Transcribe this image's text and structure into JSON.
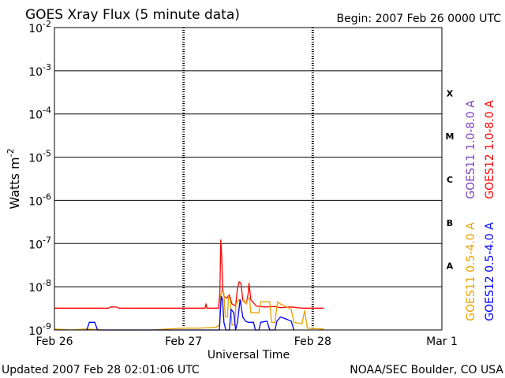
{
  "header": {
    "title": "GOES Xray Flux (5 minute data)",
    "begin": "Begin:  2007 Feb 26 0000 UTC"
  },
  "footer": {
    "updated": "Updated 2007 Feb 28 02:01:06 UTC",
    "source": "NOAA/SEC Boulder, CO USA"
  },
  "chart_data": {
    "type": "line",
    "title": "GOES Xray Flux (5 minute data)",
    "xlabel": "Universal Time",
    "ylabel": "Watts m",
    "ylabel_sup": "-2",
    "y_scale": "log",
    "ylim": [
      1e-09,
      0.01
    ],
    "xlim": [
      "2007-02-26 00:00",
      "2007-03-01 00:00"
    ],
    "grid": true,
    "x_ticks": [
      {
        "x": "2007-02-26 00:00",
        "label": "Feb 26"
      },
      {
        "x": "2007-02-27 00:00",
        "label": "Feb 27"
      },
      {
        "x": "2007-02-28 00:00",
        "label": "Feb 28"
      },
      {
        "x": "2007-03-01 00:00",
        "label": "Mar 1"
      }
    ],
    "y_ticks": [
      {
        "exp": -2
      },
      {
        "exp": -3
      },
      {
        "exp": -4
      },
      {
        "exp": -5
      },
      {
        "exp": -6
      },
      {
        "exp": -7
      },
      {
        "exp": -8
      },
      {
        "exp": -9
      }
    ],
    "y_tick_base": "10",
    "flare_classes": [
      {
        "label": "X",
        "band_low": 0.0001
      },
      {
        "label": "M",
        "band_low": 1e-05
      },
      {
        "label": "C",
        "band_low": 1e-06
      },
      {
        "label": "B",
        "band_low": 1e-07
      },
      {
        "label": "A",
        "band_low": 1e-08
      }
    ],
    "legend_placement": "right",
    "legend": [
      {
        "label": "GOES11 1.0-8.0 A",
        "color": "#7f3fbf"
      },
      {
        "label": "GOES12 1.0-8.0 A",
        "color": "#ff0000"
      },
      {
        "label": "GOES11 0.5-4.0 A",
        "color": "#e8a000"
      },
      {
        "label": "GOES12 0.5-4.0 A",
        "color": "#0000ff"
      }
    ],
    "series": [
      {
        "name": "GOES12 1.0-8.0 A",
        "color": "#ff0000",
        "points": [
          [
            "2007-02-26 00:00",
            3.2e-09
          ],
          [
            "2007-02-26 10:00",
            3.2e-09
          ],
          [
            "2007-02-26 10:30",
            3.4e-09
          ],
          [
            "2007-02-26 11:30",
            3.4e-09
          ],
          [
            "2007-02-26 12:00",
            3.2e-09
          ],
          [
            "2007-02-27 00:00",
            3.2e-09
          ],
          [
            "2007-02-27 04:00",
            3.2e-09
          ],
          [
            "2007-02-27 04:10",
            4e-09
          ],
          [
            "2007-02-27 04:20",
            3.2e-09
          ],
          [
            "2007-02-27 06:30",
            3.2e-09
          ],
          [
            "2007-02-27 06:45",
            8e-09
          ],
          [
            "2007-02-27 06:55",
            1.2e-07
          ],
          [
            "2007-02-27 07:05",
            5e-08
          ],
          [
            "2007-02-27 07:15",
            9e-09
          ],
          [
            "2007-02-27 07:30",
            6e-09
          ],
          [
            "2007-02-27 08:00",
            5.5e-09
          ],
          [
            "2007-02-27 08:30",
            6.5e-09
          ],
          [
            "2007-02-27 09:00",
            4e-09
          ],
          [
            "2007-02-27 09:40",
            3.6e-09
          ],
          [
            "2007-02-27 10:00",
            9e-09
          ],
          [
            "2007-02-27 10:20",
            1.3e-08
          ],
          [
            "2007-02-27 10:40",
            1.2e-08
          ],
          [
            "2007-02-27 11:00",
            5e-09
          ],
          [
            "2007-02-27 11:40",
            4e-09
          ],
          [
            "2007-02-27 12:00",
            7e-09
          ],
          [
            "2007-02-27 12:10",
            1.2e-08
          ],
          [
            "2007-02-27 12:30",
            5e-09
          ],
          [
            "2007-02-27 13:30",
            3.6e-09
          ],
          [
            "2007-02-27 15:00",
            3.4e-09
          ],
          [
            "2007-02-27 17:00",
            3.5e-09
          ],
          [
            "2007-02-27 18:00",
            3.3e-09
          ],
          [
            "2007-02-27 20:00",
            3.4e-09
          ],
          [
            "2007-02-27 22:00",
            3.2e-09
          ],
          [
            "2007-02-28 00:00",
            3.2e-09
          ],
          [
            "2007-02-28 02:00",
            3.2e-09
          ]
        ]
      },
      {
        "name": "GOES11 0.5-4.0 A",
        "color": "#e8a000",
        "points": [
          [
            "2007-02-26 00:00",
            1.05e-09
          ],
          [
            "2007-02-26 03:00",
            1e-09
          ],
          [
            "2007-02-26 06:00",
            1.05e-09
          ],
          [
            "2007-02-26 09:00",
            1e-09
          ],
          [
            "2007-02-26 12:00",
            1e-09
          ],
          [
            "2007-02-26 15:00",
            1e-09
          ],
          [
            "2007-02-26 18:00",
            1e-09
          ],
          [
            "2007-02-26 21:00",
            1.05e-09
          ],
          [
            "2007-02-27 00:00",
            1.1e-09
          ],
          [
            "2007-02-27 03:00",
            1.1e-09
          ],
          [
            "2007-02-27 06:00",
            1.15e-09
          ],
          [
            "2007-02-27 06:40",
            1.3e-09
          ],
          [
            "2007-02-27 06:50",
            6e-09
          ],
          [
            "2007-02-27 07:05",
            8e-09
          ],
          [
            "2007-02-27 07:30",
            7e-09
          ],
          [
            "2007-02-27 07:45",
            2e-09
          ],
          [
            "2007-02-27 08:10",
            2e-09
          ],
          [
            "2007-02-27 08:20",
            6e-09
          ],
          [
            "2007-02-27 08:40",
            5e-09
          ],
          [
            "2007-02-27 09:00",
            1.3e-09
          ],
          [
            "2007-02-27 09:30",
            1.3e-09
          ],
          [
            "2007-02-27 09:45",
            4e-09
          ],
          [
            "2007-02-27 10:15",
            5e-09
          ],
          [
            "2007-02-27 10:45",
            4.5e-09
          ],
          [
            "2007-02-27 11:10",
            5e-09
          ],
          [
            "2007-02-27 11:40",
            4e-09
          ],
          [
            "2007-02-27 12:00",
            5.5e-09
          ],
          [
            "2007-02-27 12:15",
            5.5e-09
          ],
          [
            "2007-02-27 12:30",
            2.5e-09
          ],
          [
            "2007-02-27 14:00",
            2.5e-09
          ],
          [
            "2007-02-27 14:20",
            4.5e-09
          ],
          [
            "2007-02-27 16:00",
            4.5e-09
          ],
          [
            "2007-02-27 16:20",
            1.5e-09
          ],
          [
            "2007-02-27 17:00",
            1.5e-09
          ],
          [
            "2007-02-27 17:20",
            3.5e-09
          ],
          [
            "2007-02-27 17:30",
            4.5e-09
          ],
          [
            "2007-02-27 18:00",
            4e-09
          ],
          [
            "2007-02-27 19:00",
            3.5e-09
          ],
          [
            "2007-02-27 20:00",
            3e-09
          ],
          [
            "2007-02-27 20:30",
            1.5e-09
          ],
          [
            "2007-02-27 22:00",
            1.4e-09
          ],
          [
            "2007-02-27 22:30",
            2.8e-09
          ],
          [
            "2007-02-27 23:00",
            1.1e-09
          ],
          [
            "2007-02-28 02:00",
            1.05e-09
          ]
        ]
      },
      {
        "name": "GOES12 0.5-4.0 A",
        "color": "#0000ff",
        "points": [
          [
            "2007-02-26 06:00",
            1e-09
          ],
          [
            "2007-02-26 06:30",
            1.5e-09
          ],
          [
            "2007-02-26 07:30",
            1.5e-09
          ],
          [
            "2007-02-26 08:00",
            1e-09
          ],
          [
            "2007-02-27 06:40",
            1e-09
          ],
          [
            "2007-02-27 07:00",
            6e-09
          ],
          [
            "2007-02-27 07:15",
            5e-09
          ],
          [
            "2007-02-27 07:30",
            1.5e-09
          ],
          [
            "2007-02-27 07:50",
            1e-09
          ],
          [
            "2007-02-27 08:30",
            1e-09
          ],
          [
            "2007-02-27 08:50",
            3e-09
          ],
          [
            "2007-02-27 09:20",
            2.5e-09
          ],
          [
            "2007-02-27 09:40",
            1e-09
          ],
          [
            "2007-02-27 10:00",
            1.5e-09
          ],
          [
            "2007-02-27 10:30",
            5e-09
          ],
          [
            "2007-02-27 11:00",
            2e-09
          ],
          [
            "2007-02-27 11:30",
            1.6e-09
          ],
          [
            "2007-02-27 12:00",
            1.5e-09
          ],
          [
            "2007-02-27 13:00",
            1.5e-09
          ],
          [
            "2007-02-27 13:20",
            1e-09
          ],
          [
            "2007-02-27 14:00",
            1e-09
          ],
          [
            "2007-02-27 14:20",
            1.5e-09
          ],
          [
            "2007-02-27 15:30",
            1.6e-09
          ],
          [
            "2007-02-27 16:00",
            1e-09
          ],
          [
            "2007-02-27 17:00",
            1e-09
          ],
          [
            "2007-02-27 17:20",
            1.6e-09
          ],
          [
            "2007-02-27 18:00",
            2e-09
          ],
          [
            "2007-02-27 19:00",
            1.8e-09
          ],
          [
            "2007-02-27 20:00",
            1.6e-09
          ],
          [
            "2007-02-27 20:30",
            1e-09
          ]
        ]
      }
    ]
  }
}
